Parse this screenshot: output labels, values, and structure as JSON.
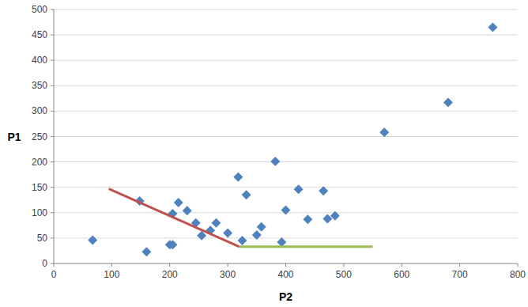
{
  "chart_data": {
    "type": "scatter",
    "x_label": "P2",
    "y_label": "P1",
    "xlim": [
      0,
      800
    ],
    "xticks": [
      0,
      100,
      200,
      300,
      400,
      500,
      600,
      700,
      800
    ],
    "ylim": [
      0,
      500
    ],
    "yticks": [
      0,
      50,
      100,
      150,
      200,
      250,
      300,
      350,
      400,
      450,
      500
    ],
    "grid": true,
    "series": [
      {
        "type": "scatter",
        "color": "#4f81bd",
        "marker": "diamond",
        "x": [
          67,
          148,
          160,
          200,
          205,
          205,
          215,
          230,
          245,
          255,
          270,
          280,
          300,
          318,
          325,
          332,
          350,
          358,
          382,
          393,
          400,
          422,
          438,
          465,
          472,
          485,
          570,
          680,
          757
        ],
        "values": [
          46,
          123,
          23,
          37,
          37,
          98,
          120,
          104,
          80,
          55,
          65,
          80,
          60,
          170,
          45,
          135,
          56,
          72,
          201,
          42,
          105,
          146,
          87,
          143,
          88,
          94,
          258,
          317,
          465
        ]
      },
      {
        "type": "line",
        "color": "#c0504d",
        "x": [
          95,
          320
        ],
        "values": [
          147,
          33
        ]
      },
      {
        "type": "line",
        "color": "#9bbb59",
        "x": [
          320,
          550
        ],
        "values": [
          33,
          33
        ]
      }
    ]
  }
}
